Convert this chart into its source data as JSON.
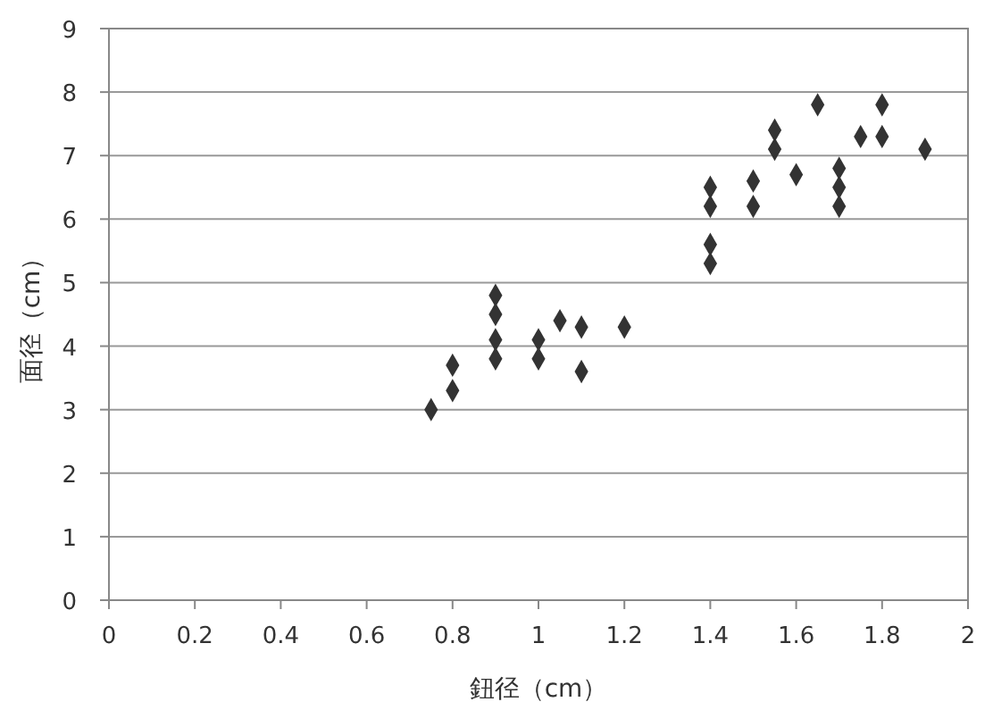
{
  "chart_data": {
    "type": "scatter",
    "xlabel": "鈕径（cm）",
    "ylabel": "面径（cm）",
    "xlim": [
      0,
      2
    ],
    "xticks": [
      0,
      0.2,
      0.4,
      0.6,
      0.8,
      1,
      1.2,
      1.4,
      1.6,
      1.8,
      2
    ],
    "ylim": [
      0,
      9
    ],
    "yticks": [
      0,
      1,
      2,
      3,
      4,
      5,
      6,
      7,
      8,
      9
    ],
    "grid": "y",
    "marker": "diamond",
    "series": [
      {
        "color": "#333333",
        "x": [
          0.75,
          0.8,
          0.8,
          0.9,
          0.9,
          0.9,
          0.9,
          1.0,
          1.0,
          1.05,
          1.1,
          1.1,
          1.2,
          1.4,
          1.4,
          1.4,
          1.4,
          1.5,
          1.5,
          1.55,
          1.55,
          1.6,
          1.65,
          1.7,
          1.7,
          1.7,
          1.75,
          1.8,
          1.8,
          1.9
        ],
        "values": [
          3.0,
          3.3,
          3.7,
          4.8,
          4.5,
          4.1,
          3.8,
          4.1,
          3.8,
          4.4,
          4.3,
          3.6,
          4.3,
          6.5,
          6.2,
          5.6,
          5.3,
          6.6,
          6.2,
          7.4,
          7.1,
          6.7,
          7.8,
          6.8,
          6.5,
          6.2,
          7.3,
          7.8,
          7.3,
          7.1
        ]
      }
    ]
  }
}
